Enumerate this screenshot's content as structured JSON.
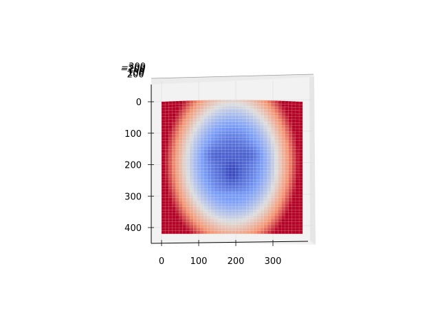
{
  "chart_data": {
    "type": "surface",
    "title": "",
    "xlabel": "",
    "ylabel": "",
    "zlabel": "",
    "view": "top-down",
    "colormap": "coolwarm",
    "x_ticks": [
      "0",
      "100",
      "200",
      "300"
    ],
    "y_ticks": [
      "0",
      "100",
      "200",
      "300",
      "400"
    ],
    "z_ticks": [
      "−300",
      "−200",
      "−100",
      "0",
      "100",
      "200"
    ],
    "xlim": [
      -25,
      410
    ],
    "ylim": [
      465,
      -25
    ],
    "surface": {
      "x_range": [
        0,
        380
      ],
      "y_range": [
        0,
        420
      ],
      "grid_cols": 40,
      "grid_rows": 44,
      "description_of_values": "depth map of a face: low (blue) over face region, high (red) at left/right borders"
    },
    "grid": true,
    "colors": {
      "low": "#3b4cc0",
      "mid": "#dddddd",
      "high": "#b40426",
      "pane": "#f2f2f2"
    }
  }
}
